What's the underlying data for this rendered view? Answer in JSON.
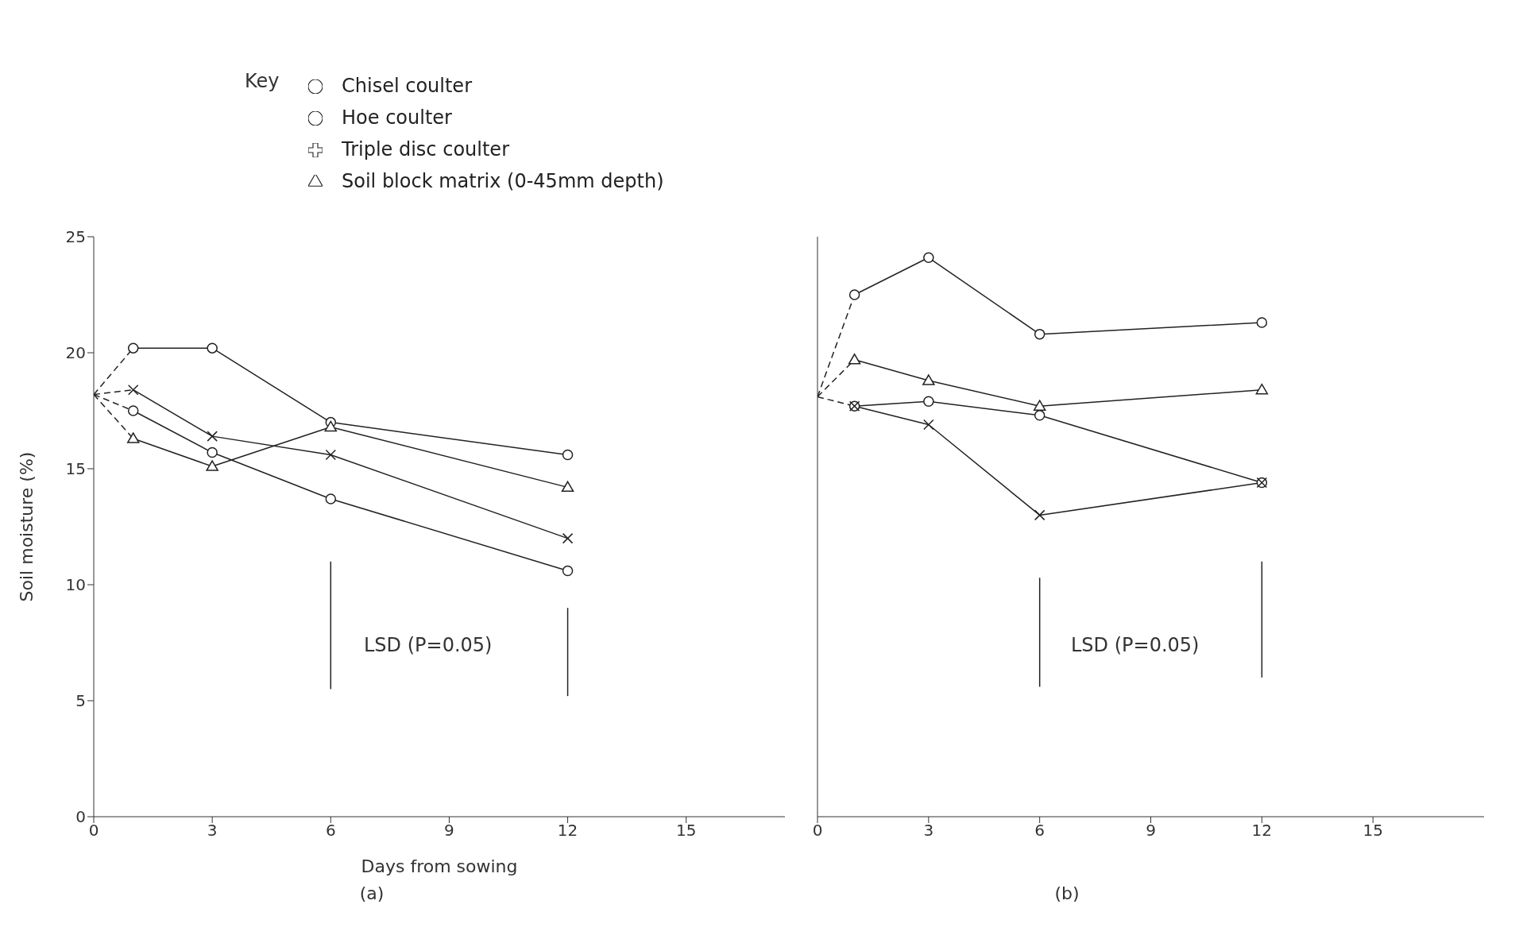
{
  "chart_data": [
    {
      "type": "line",
      "legend_title": "Key",
      "legend": "top",
      "xlabel": "Days from sowing",
      "ylabel": "Soil moisture (%)",
      "annotations": [
        "LSD (P=0.05)",
        "(a)"
      ],
      "xlim": [
        0,
        17.5
      ],
      "xticks": [
        0,
        3,
        6,
        9,
        12,
        15
      ],
      "ylim": [
        0,
        25
      ],
      "yticks": [
        0,
        5,
        10,
        15,
        20,
        25
      ],
      "grid": false,
      "series": [
        {
          "name": "Chisel coulter",
          "color": "#222222",
          "marker": "circle",
          "x": [
            1,
            3,
            6,
            12
          ],
          "values": [
            20.2,
            20.2,
            17.0,
            15.6
          ]
        },
        {
          "name": "Hoe coulter",
          "color": "#222222",
          "marker": "circle",
          "x": [
            1,
            3,
            6,
            12
          ],
          "values": [
            17.5,
            15.7,
            13.7,
            10.6
          ]
        },
        {
          "name": "Triple disc coulter",
          "color": "#222222",
          "marker": "cross",
          "x": [
            1,
            3,
            6,
            12
          ],
          "values": [
            18.4,
            16.4,
            15.6,
            12.0
          ]
        },
        {
          "name": "Soil block matrix (0-45mm depth)",
          "color": "#222222",
          "marker": "triangle",
          "x": [
            1,
            3,
            6,
            12
          ],
          "values": [
            16.3,
            15.1,
            16.8,
            14.2
          ]
        },
        {
          "color": "#222222",
          "marker": "none",
          "line_style": "dashed",
          "x": [
            0,
            1
          ],
          "values": [
            18.2,
            20.2
          ]
        },
        {
          "color": "#222222",
          "marker": "none",
          "line_style": "dashed",
          "x": [
            0,
            1
          ],
          "values": [
            18.2,
            17.5
          ]
        },
        {
          "color": "#222222",
          "marker": "none",
          "line_style": "dashed",
          "x": [
            0,
            1
          ],
          "values": [
            18.2,
            18.4
          ]
        },
        {
          "color": "#222222",
          "marker": "none",
          "line_style": "dashed",
          "x": [
            0,
            1
          ],
          "values": [
            18.2,
            16.3
          ]
        },
        {
          "color": "#222222",
          "marker": "none",
          "x": [
            6,
            6
          ],
          "values": [
            5.5,
            11.0
          ]
        },
        {
          "color": "#222222",
          "marker": "none",
          "x": [
            12,
            12
          ],
          "values": [
            5.2,
            9.0
          ]
        }
      ]
    },
    {
      "type": "line",
      "annotations": [
        "LSD (P=0.05)",
        "(b)"
      ],
      "xlim": [
        0,
        18
      ],
      "xticks": [
        0,
        3,
        6,
        9,
        12,
        15
      ],
      "ylim": [
        0,
        25
      ],
      "yticks": [
        0,
        5,
        10,
        15,
        20,
        25
      ],
      "tick_labels": "x",
      "grid": false,
      "series": [
        {
          "color": "#222222",
          "marker": "circle",
          "x": [
            1,
            3,
            6,
            12
          ],
          "values": [
            22.5,
            24.1,
            20.8,
            21.3
          ]
        },
        {
          "color": "#222222",
          "marker": "circle",
          "x": [
            1,
            3,
            6,
            12
          ],
          "values": [
            17.7,
            17.9,
            17.3,
            14.4
          ]
        },
        {
          "color": "#222222",
          "marker": "cross",
          "x": [
            1,
            3,
            6,
            12
          ],
          "values": [
            17.7,
            16.9,
            13.0,
            14.4
          ]
        },
        {
          "color": "#222222",
          "marker": "triangle",
          "x": [
            1,
            3,
            6,
            12
          ],
          "values": [
            19.7,
            18.8,
            17.7,
            18.4
          ]
        },
        {
          "color": "#222222",
          "marker": "none",
          "line_style": "dashed",
          "x": [
            0,
            1
          ],
          "values": [
            18.1,
            22.5
          ]
        },
        {
          "color": "#222222",
          "marker": "none",
          "line_style": "dashed",
          "x": [
            0,
            1
          ],
          "values": [
            18.1,
            17.7
          ]
        },
        {
          "color": "#222222",
          "marker": "none",
          "line_style": "dashed",
          "x": [
            0,
            1
          ],
          "values": [
            18.1,
            19.7
          ]
        },
        {
          "color": "#222222",
          "marker": "none",
          "x": [
            6,
            6
          ],
          "values": [
            5.6,
            10.3
          ]
        },
        {
          "color": "#222222",
          "marker": "none",
          "x": [
            12,
            12
          ],
          "values": [
            6.0,
            11.0
          ]
        }
      ]
    }
  ]
}
